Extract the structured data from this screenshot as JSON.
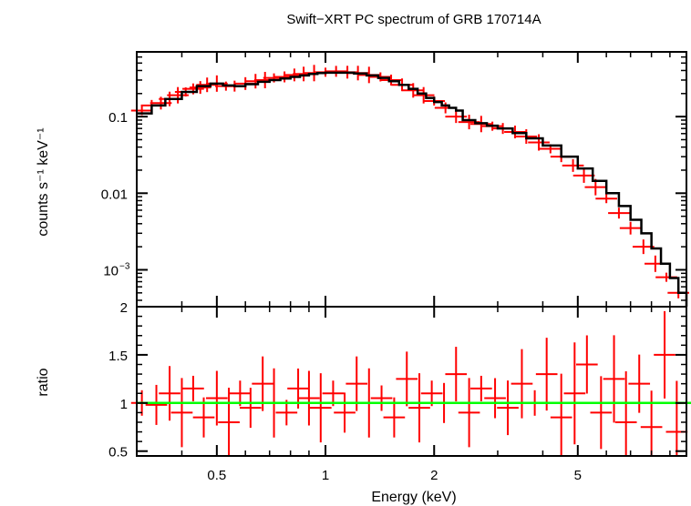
{
  "chart_data": [
    {
      "type": "scatter",
      "title": "Swift−XRT PC spectrum of GRB 170714A",
      "xlabel": "",
      "ylabel": "counts s⁻¹ keV⁻¹",
      "xscale": "log",
      "yscale": "log",
      "xlim": [
        0.3,
        10
      ],
      "ylim": [
        0.00033,
        0.7
      ],
      "yticks": [
        {
          "value": 0.1,
          "label": "0.1"
        },
        {
          "value": 0.01,
          "label": "0.01"
        },
        {
          "value": 0.001,
          "label": "10",
          "exponent": "−3"
        }
      ],
      "series": [
        {
          "role": "data",
          "color": "#ff0000",
          "x": [
            0.31,
            0.33,
            0.35,
            0.37,
            0.39,
            0.41,
            0.43,
            0.45,
            0.47,
            0.5,
            0.53,
            0.56,
            0.6,
            0.64,
            0.68,
            0.72,
            0.77,
            0.82,
            0.87,
            0.93,
            1.0,
            1.07,
            1.15,
            1.23,
            1.32,
            1.42,
            1.52,
            1.63,
            1.75,
            1.87,
            2.0,
            2.15,
            2.3,
            2.5,
            2.7,
            2.9,
            3.1,
            3.35,
            3.6,
            3.9,
            4.2,
            4.5,
            4.85,
            5.2,
            5.6,
            6.0,
            6.5,
            7.0,
            7.6,
            8.2,
            8.8,
            9.5
          ],
          "y": [
            0.12,
            0.14,
            0.15,
            0.17,
            0.19,
            0.21,
            0.23,
            0.24,
            0.26,
            0.27,
            0.25,
            0.25,
            0.27,
            0.29,
            0.3,
            0.32,
            0.33,
            0.35,
            0.36,
            0.37,
            0.38,
            0.39,
            0.38,
            0.37,
            0.35,
            0.33,
            0.3,
            0.26,
            0.22,
            0.19,
            0.16,
            0.13,
            0.1,
            0.085,
            0.08,
            0.075,
            0.07,
            0.063,
            0.055,
            0.046,
            0.038,
            0.03,
            0.023,
            0.017,
            0.012,
            0.0085,
            0.0055,
            0.0035,
            0.002,
            0.0012,
            0.0008,
            0.0005
          ]
        },
        {
          "role": "model",
          "color": "#000000",
          "x": [
            0.3,
            0.33,
            0.36,
            0.4,
            0.44,
            0.48,
            0.52,
            0.56,
            0.6,
            0.65,
            0.7,
            0.75,
            0.8,
            0.85,
            0.9,
            0.95,
            1.0,
            1.1,
            1.2,
            1.3,
            1.4,
            1.5,
            1.6,
            1.7,
            1.8,
            1.9,
            2.0,
            2.1,
            2.2,
            2.3,
            2.4,
            2.6,
            2.8,
            3.0,
            3.3,
            3.6,
            4.0,
            4.5,
            5.0,
            5.5,
            6.0,
            6.5,
            7.0,
            7.5,
            8.0,
            8.5,
            9.0,
            9.5,
            10.0
          ],
          "y": [
            0.11,
            0.14,
            0.17,
            0.21,
            0.25,
            0.27,
            0.255,
            0.25,
            0.265,
            0.285,
            0.3,
            0.315,
            0.33,
            0.345,
            0.36,
            0.37,
            0.375,
            0.375,
            0.365,
            0.345,
            0.32,
            0.29,
            0.26,
            0.23,
            0.2,
            0.175,
            0.155,
            0.14,
            0.13,
            0.12,
            0.09,
            0.082,
            0.076,
            0.07,
            0.061,
            0.052,
            0.042,
            0.03,
            0.021,
            0.0145,
            0.01,
            0.0068,
            0.0045,
            0.003,
            0.0019,
            0.0012,
            0.00078,
            0.0005,
            0.00033
          ]
        }
      ]
    },
    {
      "type": "scatter",
      "title": "",
      "xlabel": "Energy (keV)",
      "ylabel": "ratio",
      "xscale": "log",
      "xlim": [
        0.3,
        10
      ],
      "ylim": [
        0.45,
        2.0
      ],
      "xticks": [
        {
          "value": 0.5,
          "label": "0.5"
        },
        {
          "value": 1,
          "label": "1"
        },
        {
          "value": 2,
          "label": "2"
        },
        {
          "value": 5,
          "label": "5"
        }
      ],
      "yticks": [
        {
          "value": 0.5,
          "label": "0.5"
        },
        {
          "value": 1,
          "label": "1"
        },
        {
          "value": 1.5,
          "label": "1.5"
        },
        {
          "value": 2,
          "label": "2"
        }
      ],
      "reference_line": {
        "y": 1,
        "color": "#00ff00"
      },
      "series": [
        {
          "role": "data",
          "color": "#ff0000",
          "x": [
            0.31,
            0.34,
            0.37,
            0.4,
            0.43,
            0.46,
            0.5,
            0.54,
            0.58,
            0.62,
            0.67,
            0.72,
            0.78,
            0.84,
            0.9,
            0.97,
            1.05,
            1.13,
            1.22,
            1.32,
            1.43,
            1.55,
            1.68,
            1.82,
            1.97,
            2.13,
            2.3,
            2.5,
            2.7,
            2.95,
            3.2,
            3.5,
            3.8,
            4.1,
            4.5,
            4.9,
            5.3,
            5.8,
            6.3,
            6.8,
            7.4,
            8.0,
            8.7,
            9.4
          ],
          "y": [
            1.0,
            0.98,
            1.1,
            0.9,
            1.15,
            0.85,
            1.05,
            0.8,
            1.1,
            0.95,
            1.2,
            1.0,
            0.9,
            1.15,
            1.05,
            0.95,
            1.1,
            0.9,
            1.2,
            1.0,
            1.05,
            0.85,
            1.25,
            0.95,
            1.1,
            1.0,
            1.3,
            0.9,
            1.15,
            1.05,
            0.95,
            1.2,
            1.0,
            1.3,
            0.85,
            1.1,
            1.4,
            0.9,
            1.25,
            0.8,
            1.2,
            0.75,
            1.5,
            0.7
          ]
        }
      ]
    }
  ]
}
